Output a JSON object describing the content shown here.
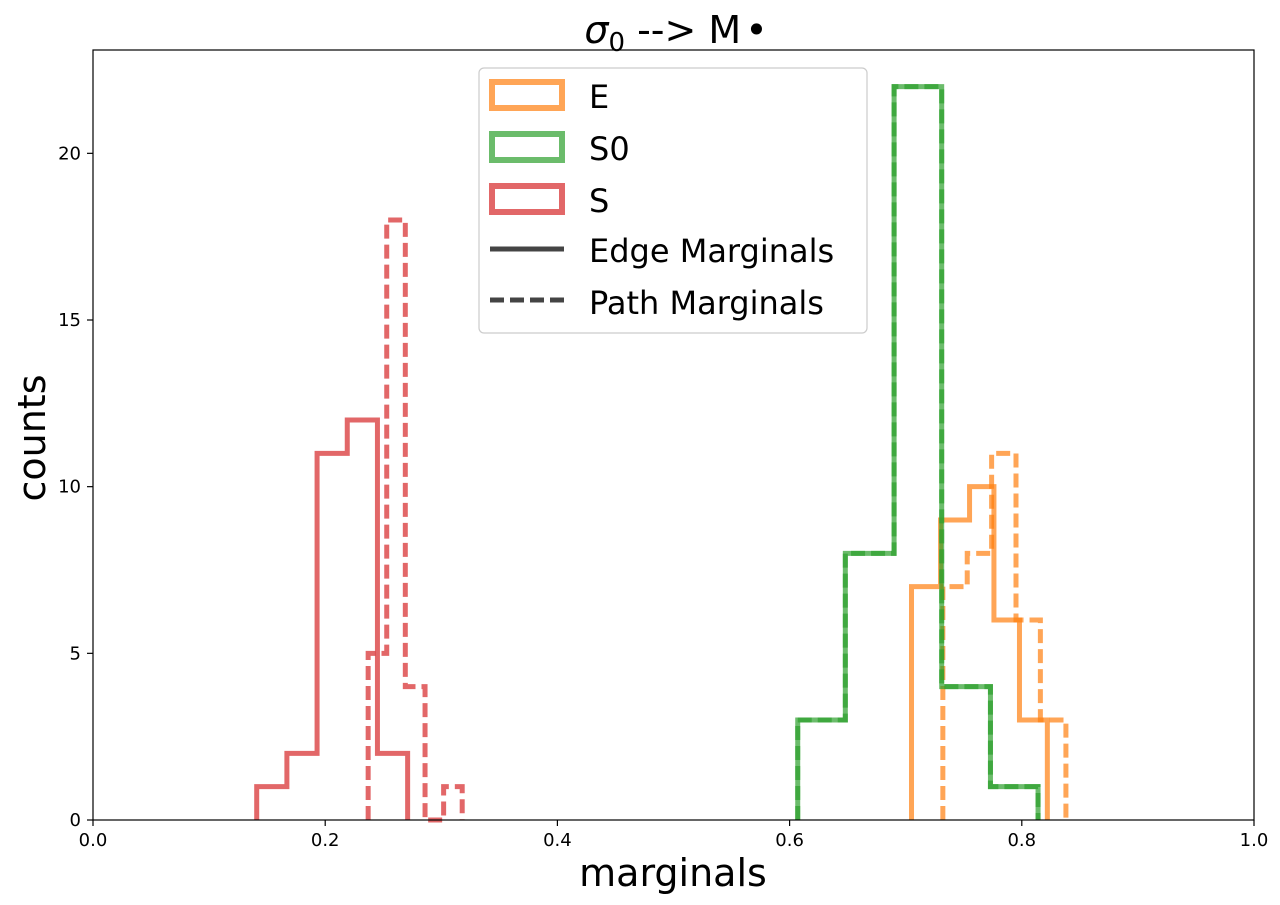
{
  "chart_data": {
    "type": "histogram-step",
    "title_symbol": "σ",
    "title_subscript": "0",
    "title_rest": " --> M",
    "title_bullet": "•",
    "xlabel": "marginals",
    "ylabel": "counts",
    "xlim": [
      0.0,
      1.0
    ],
    "ylim": [
      0,
      23.1
    ],
    "xticks": [
      0.0,
      0.2,
      0.4,
      0.6,
      0.8,
      1.0
    ],
    "xtick_labels": [
      "0.0",
      "0.2",
      "0.4",
      "0.6",
      "0.8",
      "1.0"
    ],
    "yticks": [
      0,
      5,
      10,
      15,
      20
    ],
    "ytick_labels": [
      "0",
      "5",
      "10",
      "15",
      "20"
    ],
    "legend_position": "upper-center",
    "legend": [
      {
        "label": "E",
        "kind": "patch",
        "color": "#ff7f0e"
      },
      {
        "label": "S0",
        "kind": "patch",
        "color": "#2ca02c"
      },
      {
        "label": "S",
        "kind": "patch",
        "color": "#d62728"
      },
      {
        "label": "Edge Marginals",
        "kind": "solid-line",
        "color": "#444444"
      },
      {
        "label": "Path Marginals",
        "kind": "dashed-line",
        "color": "#444444"
      }
    ],
    "series": [
      {
        "name": "E",
        "style": "Edge Marginals",
        "color": "#ff7f0e",
        "edges": [
          0.705,
          0.73,
          0.755,
          0.776,
          0.798,
          0.822
        ],
        "counts": [
          7,
          9,
          10,
          6,
          3
        ]
      },
      {
        "name": "E",
        "style": "Path Marginals",
        "color": "#ff7f0e",
        "edges": [
          0.732,
          0.753,
          0.774,
          0.795,
          0.816,
          0.838
        ],
        "counts": [
          7,
          8,
          11,
          6,
          3
        ]
      },
      {
        "name": "S0",
        "style": "Edge Marginals",
        "color": "#2ca02c",
        "edges": [
          0.607,
          0.648,
          0.69,
          0.731,
          0.773,
          0.814
        ],
        "counts": [
          3,
          8,
          22,
          4,
          1
        ]
      },
      {
        "name": "S0",
        "style": "Path Marginals",
        "color": "#2ca02c",
        "edges": [
          0.607,
          0.648,
          0.69,
          0.731,
          0.773,
          0.814
        ],
        "counts": [
          3,
          8,
          22,
          4,
          1
        ]
      },
      {
        "name": "S",
        "style": "Edge Marginals",
        "color": "#d62728",
        "edges": [
          0.141,
          0.167,
          0.193,
          0.219,
          0.245,
          0.271
        ],
        "counts": [
          1,
          2,
          11,
          12,
          2
        ]
      },
      {
        "name": "S",
        "style": "Path Marginals",
        "color": "#d62728",
        "edges": [
          0.237,
          0.253,
          0.269,
          0.286,
          0.302,
          0.318
        ],
        "counts": [
          5,
          18,
          4,
          0,
          1
        ]
      }
    ]
  }
}
